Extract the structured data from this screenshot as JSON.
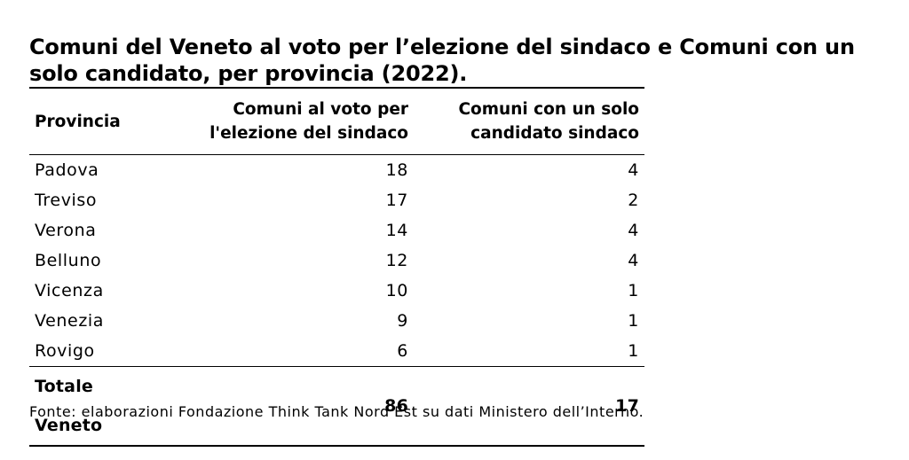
{
  "chart_data": {
    "type": "table",
    "title": "Comuni del Veneto al voto per l’elezione del sindaco e Comuni con un solo candidato, per provincia (2022).",
    "columns": [
      "Provincia",
      "Comuni al voto per l'elezione del sindaco",
      "Comuni con un solo candidato sindaco"
    ],
    "rows": [
      {
        "provincia": "Padova",
        "comuni_al_voto": 18,
        "un_solo_candidato": 4
      },
      {
        "provincia": "Treviso",
        "comuni_al_voto": 17,
        "un_solo_candidato": 2
      },
      {
        "provincia": "Verona",
        "comuni_al_voto": 14,
        "un_solo_candidato": 4
      },
      {
        "provincia": "Belluno",
        "comuni_al_voto": 12,
        "un_solo_candidato": 4
      },
      {
        "provincia": "Vicenza",
        "comuni_al_voto": 10,
        "un_solo_candidato": 1
      },
      {
        "provincia": "Venezia",
        "comuni_al_voto": 9,
        "un_solo_candidato": 1
      },
      {
        "provincia": "Rovigo",
        "comuni_al_voto": 6,
        "un_solo_candidato": 1
      }
    ],
    "total": {
      "label": "Totale Veneto",
      "comuni_al_voto": 86,
      "un_solo_candidato": 17
    },
    "source": "Fonte: elaborazioni Fondazione Think Tank Nord Est su dati Ministero dell’Interno."
  },
  "header": {
    "col1": "Provincia",
    "col2_line1": "Comuni al voto per",
    "col2_line2": "l'elezione del sindaco",
    "col3_line1": "Comuni con un solo",
    "col3_line2": "candidato sindaco"
  }
}
